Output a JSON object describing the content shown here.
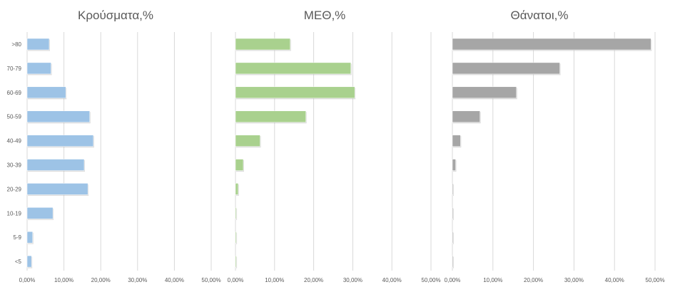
{
  "chart_data": [
    {
      "type": "bar",
      "orientation": "horizontal",
      "title": "Κρούσματα,%",
      "categories": [
        ">80",
        "70-79",
        "60-69",
        "50-59",
        "40-49",
        "30-39",
        "20-29",
        "10-19",
        "5-9",
        "<5"
      ],
      "values": [
        6.0,
        6.5,
        10.5,
        17.0,
        18.0,
        15.5,
        16.5,
        7.0,
        1.5,
        1.2
      ],
      "color": "#9dc3e6",
      "xlim": [
        0,
        50
      ],
      "xticks": [
        "0,00%",
        "10,00%",
        "20,00%",
        "30,00%",
        "40,00%",
        "50,00%"
      ],
      "grid": true,
      "show_categories": true
    },
    {
      "type": "bar",
      "orientation": "horizontal",
      "title": "ΜΕΘ,%",
      "categories": [
        ">80",
        "70-79",
        "60-69",
        "50-59",
        "40-49",
        "30-39",
        "20-29",
        "10-19",
        "5-9",
        "<5"
      ],
      "values": [
        14.0,
        29.5,
        30.5,
        18.0,
        6.3,
        2.0,
        0.7,
        0.2,
        0.2,
        0.2
      ],
      "color": "#a9d18e",
      "xlim": [
        0,
        50
      ],
      "xticks": [
        "0,00%",
        "10,00%",
        "20,00%",
        "30,00%",
        "40,00%",
        "50,00%"
      ],
      "grid": true,
      "show_categories": false
    },
    {
      "type": "bar",
      "orientation": "horizontal",
      "title": "Θάνατοι,%",
      "categories": [
        ">80",
        "70-79",
        "60-69",
        "50-59",
        "40-49",
        "30-39",
        "20-29",
        "10-19",
        "5-9",
        "<5"
      ],
      "values": [
        49.0,
        26.5,
        15.8,
        6.8,
        2.0,
        0.8,
        0.1,
        0.1,
        0,
        0
      ],
      "color": "#a6a6a6",
      "xlim": [
        0,
        50
      ],
      "xticks": [
        "0,00%",
        "10,00%",
        "20,00%",
        "30,00%",
        "40,00%",
        "50,00%"
      ],
      "grid": true,
      "show_categories": false
    }
  ]
}
